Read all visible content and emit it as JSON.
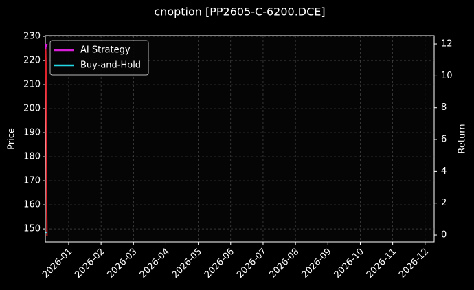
{
  "chart_data": {
    "type": "line",
    "title": "cnoption [PP2605-C-6200.DCE]",
    "ylabel": "Price",
    "y2label": "Return",
    "x": [
      0.29,
      0.3,
      0.31,
      0.32,
      0.33
    ],
    "xlim": [
      0.28,
      12.28
    ],
    "xticks": [
      {
        "value": 1,
        "label": "2026-01"
      },
      {
        "value": 2,
        "label": "2026-02"
      },
      {
        "value": 3,
        "label": "2026-03"
      },
      {
        "value": 4,
        "label": "2026-04"
      },
      {
        "value": 5,
        "label": "2026-05"
      },
      {
        "value": 6,
        "label": "2026-06"
      },
      {
        "value": 7,
        "label": "2026-07"
      },
      {
        "value": 8,
        "label": "2026-08"
      },
      {
        "value": 9,
        "label": "2026-09"
      },
      {
        "value": 10,
        "label": "2026-10"
      },
      {
        "value": 11,
        "label": "2026-11"
      },
      {
        "value": 12,
        "label": "2026-12"
      }
    ],
    "ylim": [
      144.6,
      230.3
    ],
    "yticks": [
      150,
      160,
      170,
      180,
      190,
      200,
      210,
      220,
      230
    ],
    "y2lim": [
      -0.43,
      12.52
    ],
    "y2ticks": [
      0,
      2,
      4,
      6,
      8,
      10,
      12
    ],
    "grid": true,
    "legend": "upper left",
    "series": [
      {
        "color": "#e0202a",
        "values": [
          226,
          219,
          190,
          160,
          147
        ]
      },
      {
        "name": "AI Strategy",
        "color": "#d81ed8",
        "axis": "y2",
        "values": [
          11.7,
          12.0,
          11.8,
          11.9,
          12.0
        ]
      },
      {
        "name": "Buy-and-Hold",
        "color": "#22d8e6",
        "axis": "y2",
        "values": [
          0.17,
          0.17,
          0.17,
          0.17,
          0.17
        ]
      }
    ]
  }
}
